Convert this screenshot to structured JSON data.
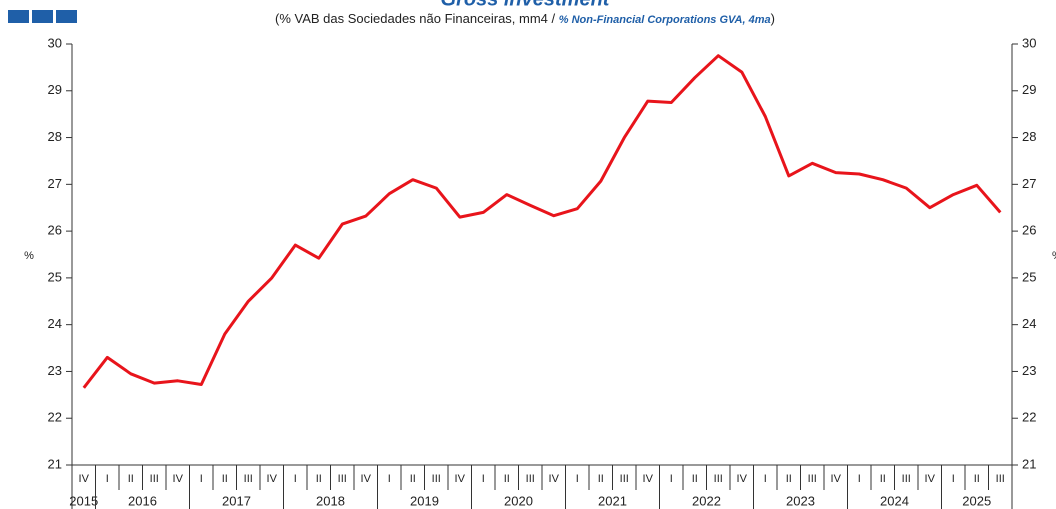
{
  "chart_data": {
    "type": "line",
    "title": "Gross investment",
    "subtitle": [
      "(% VAB das Sociedades não Financeiras, mm4 / ",
      "% Non-Financial Corporations GVA, 4ma",
      ")"
    ],
    "ylabel": "%",
    "categories": [
      "IV",
      "I",
      "II",
      "III",
      "IV",
      "I",
      "II",
      "III",
      "IV",
      "I",
      "II",
      "III",
      "IV",
      "I",
      "II",
      "III",
      "IV",
      "I",
      "II",
      "III",
      "IV",
      "I",
      "II",
      "III",
      "IV",
      "I",
      "II",
      "III",
      "IV",
      "I",
      "II",
      "III",
      "IV",
      "I",
      "II",
      "III",
      "IV",
      "I",
      "II",
      "III"
    ],
    "years": [
      "2015",
      "2016",
      "2017",
      "2018",
      "2019",
      "2020",
      "2021",
      "2022",
      "2023",
      "2024",
      "2025"
    ],
    "series": [
      {
        "name": "Gross investment",
        "color": "#e8141b",
        "values": [
          22.65,
          23.3,
          22.95,
          22.75,
          22.8,
          22.72,
          23.8,
          24.5,
          25.0,
          25.7,
          25.42,
          26.15,
          26.32,
          26.8,
          27.1,
          26.92,
          26.3,
          26.4,
          26.78,
          26.55,
          26.33,
          26.48,
          27.07,
          28.0,
          28.78,
          28.75,
          29.28,
          29.75,
          29.4,
          28.45,
          27.18,
          27.45,
          27.25,
          27.22,
          27.1,
          26.92,
          26.5,
          26.78,
          26.98,
          26.4
        ]
      }
    ],
    "ylim": [
      21,
      30
    ],
    "yticks": [
      21,
      22,
      23,
      24,
      25,
      26,
      27,
      28,
      29,
      30
    ]
  }
}
